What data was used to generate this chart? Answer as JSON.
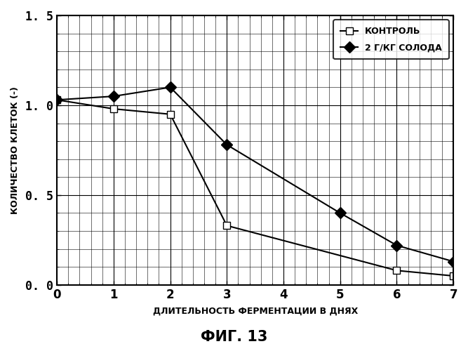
{
  "series": [
    {
      "label": "КОНТРОЛЬ",
      "x": [
        0,
        1,
        2,
        3,
        6,
        7
      ],
      "y": [
        1.03,
        0.98,
        0.95,
        0.33,
        0.08,
        0.05
      ],
      "color": "#000000",
      "marker": "s",
      "markersize": 7,
      "linewidth": 1.5,
      "markerfacecolor": "#ffffff"
    },
    {
      "label": "2 Г/КГ СОЛОДА",
      "x": [
        0,
        1,
        2,
        3,
        5,
        6,
        7
      ],
      "y": [
        1.03,
        1.05,
        1.1,
        0.78,
        0.4,
        0.22,
        0.13
      ],
      "color": "#000000",
      "marker": "D",
      "markersize": 8,
      "linewidth": 1.5,
      "markerfacecolor": "#000000"
    }
  ],
  "xlabel": "ДЛИТЕЛЬНОСТЬ ФЕРМЕНТАЦИИ В ДНЯХ",
  "ylabel": "КОЛИЧЕСТВО КЛЕТОК (-)",
  "title": "ФИГ. 13",
  "xlim": [
    0,
    7
  ],
  "ylim": [
    0.0,
    1.5
  ],
  "xticks": [
    0,
    1,
    2,
    3,
    4,
    5,
    6,
    7
  ],
  "yticks": [
    0.0,
    0.5,
    1.0,
    1.5
  ],
  "ytick_labels": [
    "0. 0",
    "0. 5",
    "1. 0",
    "1. 5"
  ],
  "grid_major": true,
  "grid_minor": true,
  "background_color": "#ffffff",
  "legend_loc": "upper right",
  "xlabel_fontsize": 9,
  "ylabel_fontsize": 9,
  "title_fontsize": 15,
  "tick_fontsize": 12,
  "minor_per_major": 5
}
